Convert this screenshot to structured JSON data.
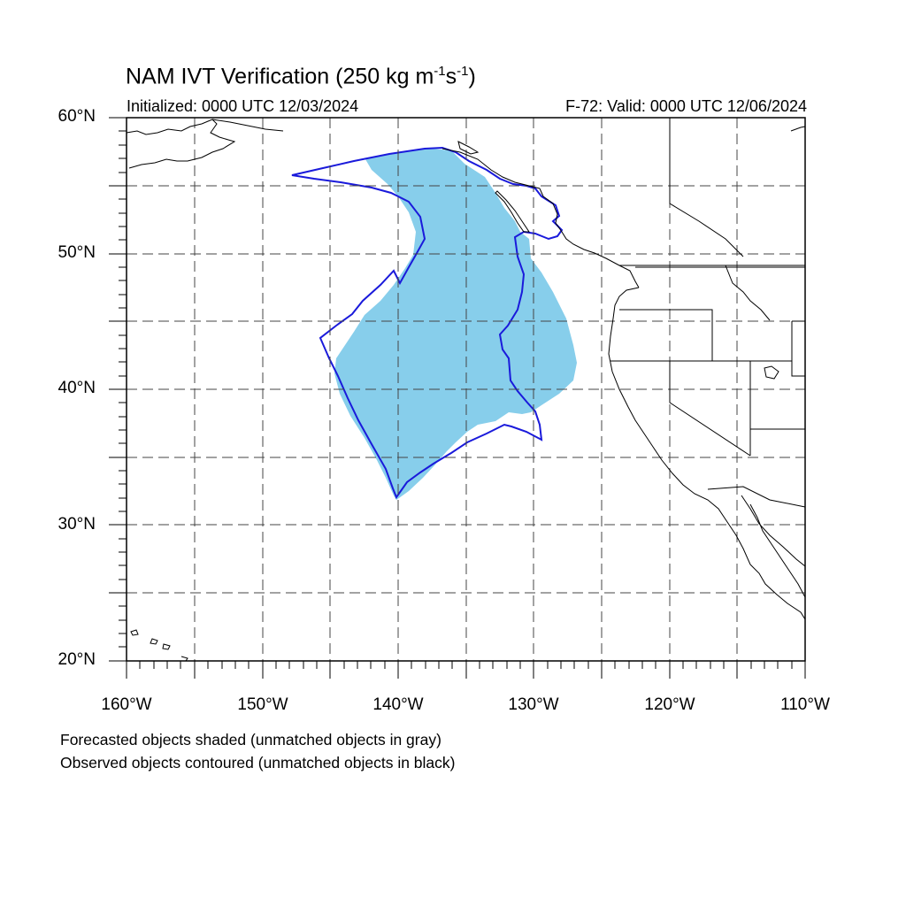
{
  "title": {
    "main": "NAM IVT Verification (250 kg m",
    "exp1": "-1",
    "mid": "s",
    "exp2": "-1",
    "end": ")"
  },
  "initialized": "Initialized: 0000 UTC 12/03/2024",
  "valid": "F-72: Valid: 0000 UTC 12/06/2024",
  "lat_labels": [
    "60°N",
    "50°N",
    "40°N",
    "30°N",
    "20°N"
  ],
  "lon_labels": [
    "160°W",
    "150°W",
    "140°W",
    "130°W",
    "120°W",
    "110°W"
  ],
  "legend": {
    "line1": "Forecasted objects shaded (unmatched objects in gray)",
    "line2": "Observed objects contoured (unmatched objects in black)"
  },
  "colors": {
    "forecast_fill": "#87ceeb",
    "observed_contour": "#1a1adb",
    "coastline": "#000000",
    "grid": "#444444"
  },
  "map": {
    "extent_lon": [
      -160,
      -110
    ],
    "extent_lat": [
      20,
      60
    ],
    "grid_spacing_deg": 5
  }
}
